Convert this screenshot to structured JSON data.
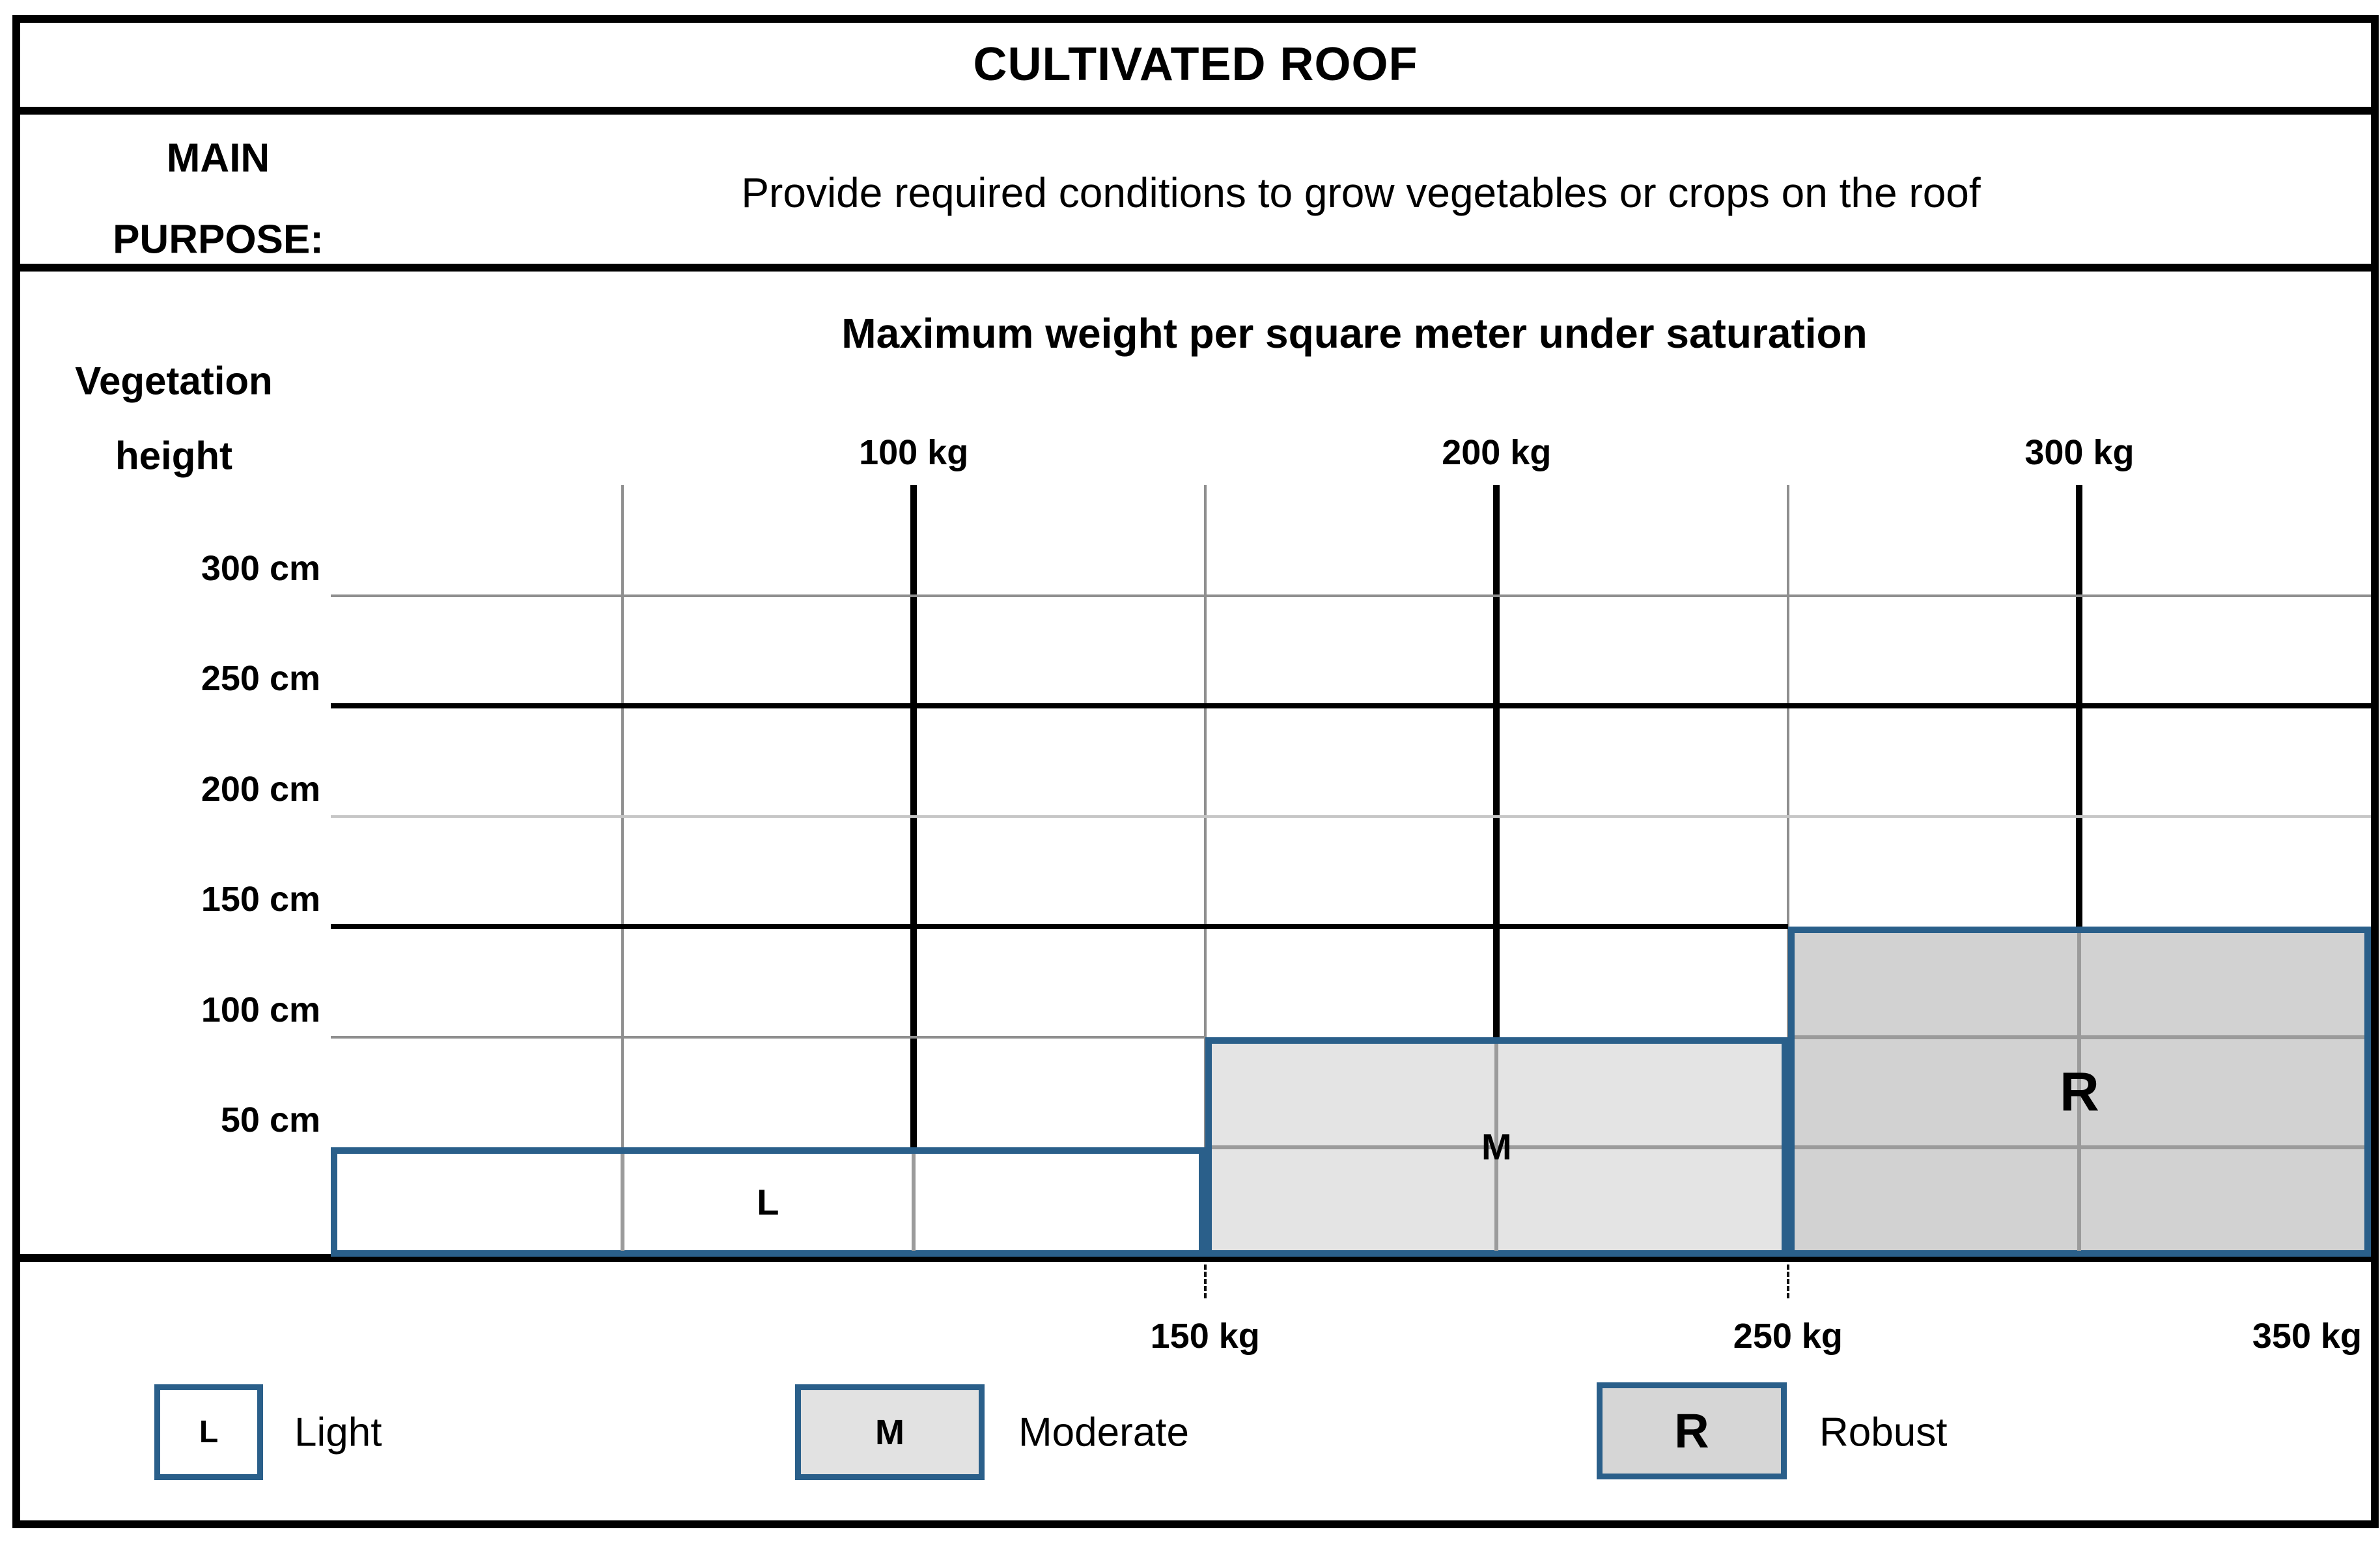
{
  "header": {
    "title": "CULTIVATED ROOF"
  },
  "purpose": {
    "label_lines": [
      "MAIN",
      "PURPOSE:"
    ],
    "text": "Provide required conditions to grow vegetables or crops on the roof"
  },
  "chart_data": {
    "type": "area",
    "title": "Maximum weight per square meter under saturation",
    "y_axis_title_lines": [
      "Vegetation",
      "height"
    ],
    "x_unit": "kg",
    "y_unit": "cm",
    "xlim": [
      0,
      350
    ],
    "ylim": [
      0,
      350
    ],
    "x_gridlines_kg": [
      50,
      100,
      150,
      200,
      250,
      300
    ],
    "x_major_kg": [
      100,
      200,
      300
    ],
    "x_ticks_top": [
      {
        "value_kg": 100,
        "label": "100 kg"
      },
      {
        "value_kg": 200,
        "label": "200 kg"
      },
      {
        "value_kg": 300,
        "label": "300 kg"
      }
    ],
    "x_ticks_bottom": [
      {
        "value_kg": 150,
        "label": "150 kg"
      },
      {
        "value_kg": 250,
        "label": "250 kg"
      },
      {
        "value_kg": 350,
        "label": "350 kg"
      }
    ],
    "y_ticks": [
      {
        "value_cm": 300,
        "label": "300 cm",
        "line_style": "thin"
      },
      {
        "value_cm": 250,
        "label": "250 cm",
        "line_style": "thick"
      },
      {
        "value_cm": 200,
        "label": "200 cm",
        "line_style": "light"
      },
      {
        "value_cm": 150,
        "label": "150 cm",
        "line_style": "thick"
      },
      {
        "value_cm": 100,
        "label": "100 cm",
        "line_style": "thin"
      },
      {
        "value_cm": 50,
        "label": "50 cm",
        "line_style": "thick"
      }
    ],
    "regions": [
      {
        "id": "L",
        "label": "L",
        "name": "Light",
        "max_weight_kg_per_m2": 150,
        "max_vegetation_height_cm": 50,
        "x_range_kg": [
          0,
          150
        ],
        "y_range_cm": [
          0,
          50
        ],
        "fill": "#ffffff"
      },
      {
        "id": "M",
        "label": "M",
        "name": "Moderate",
        "max_weight_kg_per_m2": 250,
        "max_vegetation_height_cm": 100,
        "x_range_kg": [
          150,
          250
        ],
        "y_range_cm": [
          0,
          100
        ],
        "fill": "#e4e4e4"
      },
      {
        "id": "R",
        "label": "R",
        "name": "Robust",
        "max_weight_kg_per_m2": 350,
        "max_vegetation_height_cm": 150,
        "x_range_kg": [
          250,
          350
        ],
        "y_range_cm": [
          0,
          150
        ],
        "fill": "#d2d2d2"
      }
    ]
  },
  "legend": {
    "items": [
      {
        "key": "L",
        "label": "Light",
        "fill": "#ffffff"
      },
      {
        "key": "M",
        "label": "Moderate",
        "fill": "#e2e2e2"
      },
      {
        "key": "R",
        "label": "Robust",
        "fill": "#d6d6d6"
      }
    ]
  },
  "colors": {
    "region_border_blue": "#2a5f8a",
    "grid_thick": "#000000",
    "grid_thin": "#8f8f8f",
    "grid_light": "#c6c6c6",
    "grid_inner": "#9b9b9b",
    "table_border": "#000000",
    "dash_mark": "#111111"
  }
}
